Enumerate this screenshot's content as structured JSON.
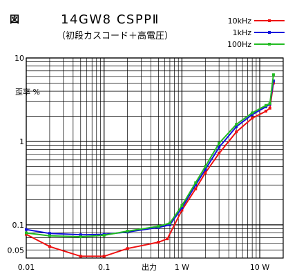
{
  "header": {
    "fig_label": "図",
    "title": "14GW8 CSPPⅡ",
    "subtitle": "（初段カスコード＋高電圧）"
  },
  "chart_data": {
    "type": "line",
    "title": "14GW8 CSPPⅡ",
    "subtitle": "（初段カスコード＋高電圧）",
    "xlabel": "出力",
    "ylabel": "歪率 %",
    "xscale": "log",
    "yscale": "log",
    "xlim": [
      0.01,
      20
    ],
    "ylim": [
      0.04,
      10
    ],
    "grid": true,
    "legend_position": "top-right",
    "x_tick_labels": [
      {
        "value": 0.01,
        "label": "0.01"
      },
      {
        "value": 0.1,
        "label": "0.1"
      },
      {
        "value": 1,
        "label": "1 W"
      },
      {
        "value": 10,
        "label": "10 W"
      }
    ],
    "y_tick_labels": [
      {
        "value": 10,
        "label": "10"
      },
      {
        "value": 1,
        "label": "1"
      },
      {
        "value": 0.1,
        "label": "0.1"
      },
      {
        "value": 0.05,
        "label": "0.05"
      }
    ],
    "series": [
      {
        "name": "10kHz",
        "color": "#ee1111",
        "marker": "square",
        "points": [
          [
            0.01,
            0.077
          ],
          [
            0.02,
            0.055
          ],
          [
            0.05,
            0.042
          ],
          [
            0.1,
            0.042
          ],
          [
            0.2,
            0.052
          ],
          [
            0.5,
            0.062
          ],
          [
            0.65,
            0.068
          ],
          [
            1.0,
            0.15
          ],
          [
            1.5,
            0.27
          ],
          [
            2.0,
            0.42
          ],
          [
            3.0,
            0.72
          ],
          [
            5.0,
            1.3
          ],
          [
            8.0,
            1.9
          ],
          [
            12.0,
            2.3
          ],
          [
            13.5,
            2.5
          ],
          [
            15.0,
            5.0
          ]
        ]
      },
      {
        "name": "1kHz",
        "color": "#1111dd",
        "marker": "square",
        "points": [
          [
            0.01,
            0.088
          ],
          [
            0.02,
            0.079
          ],
          [
            0.05,
            0.076
          ],
          [
            0.1,
            0.077
          ],
          [
            0.2,
            0.082
          ],
          [
            0.5,
            0.093
          ],
          [
            0.7,
            0.1
          ],
          [
            1.0,
            0.16
          ],
          [
            1.5,
            0.3
          ],
          [
            2.0,
            0.46
          ],
          [
            3.0,
            0.85
          ],
          [
            5.0,
            1.5
          ],
          [
            8.0,
            2.1
          ],
          [
            12.0,
            2.6
          ],
          [
            13.5,
            2.8
          ],
          [
            15.0,
            5.3
          ]
        ]
      },
      {
        "name": "100Hz",
        "color": "#22bb22",
        "marker": "square",
        "points": [
          [
            0.01,
            0.08
          ],
          [
            0.02,
            0.074
          ],
          [
            0.05,
            0.072
          ],
          [
            0.1,
            0.075
          ],
          [
            0.2,
            0.084
          ],
          [
            0.5,
            0.096
          ],
          [
            0.7,
            0.105
          ],
          [
            1.0,
            0.17
          ],
          [
            1.5,
            0.32
          ],
          [
            2.0,
            0.5
          ],
          [
            3.0,
            0.95
          ],
          [
            5.0,
            1.6
          ],
          [
            8.0,
            2.2
          ],
          [
            12.0,
            2.7
          ],
          [
            13.5,
            2.85
          ],
          [
            15.0,
            6.3
          ]
        ]
      }
    ]
  }
}
